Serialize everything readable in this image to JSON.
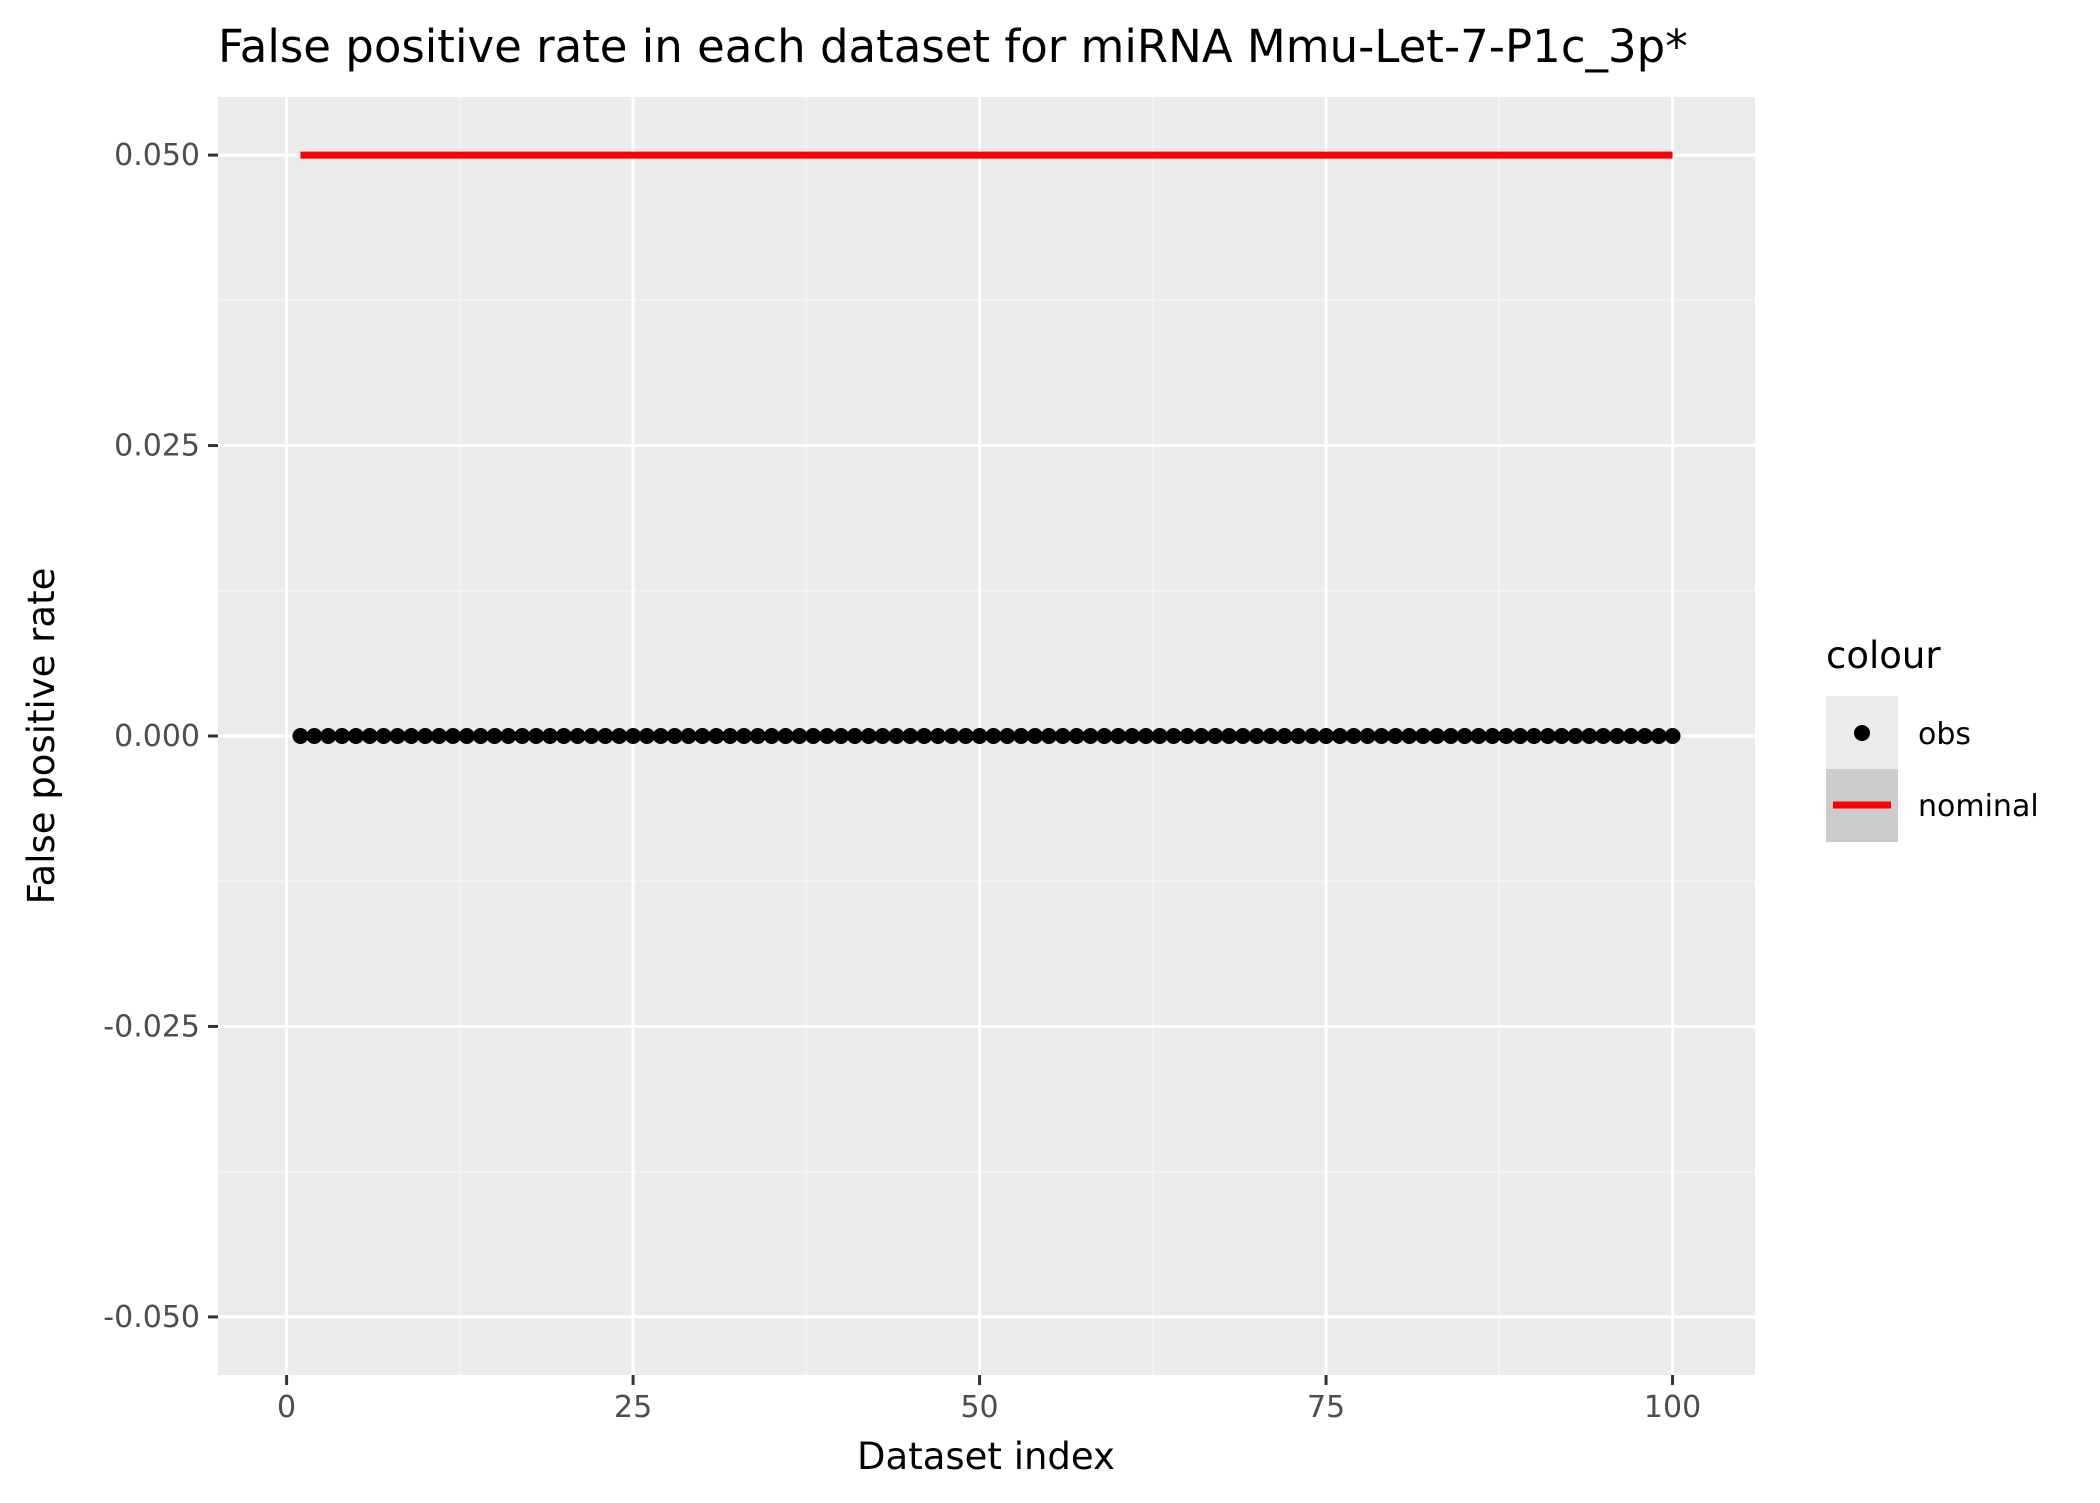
{
  "chart_data": {
    "type": "scatter",
    "title": "False positive rate in each dataset for miRNA Mmu-Let-7-P1c_3p*",
    "xlabel": "Dataset index",
    "ylabel": "False positive rate",
    "xlim": [
      -4.95,
      105.95
    ],
    "ylim": [
      -0.055,
      0.055
    ],
    "x_ticks": [
      0,
      25,
      50,
      75,
      100
    ],
    "x_tick_labels": [
      "0",
      "25",
      "50",
      "75",
      "100"
    ],
    "x_minor_ticks": [
      12.5,
      37.5,
      62.5,
      87.5
    ],
    "y_ticks": [
      -0.05,
      -0.025,
      0,
      0.025,
      0.05
    ],
    "y_tick_labels": [
      "-0.050",
      "-0.025",
      "0.000",
      "0.025",
      "0.050"
    ],
    "y_minor_ticks": [
      -0.0375,
      -0.0125,
      0.0125,
      0.0375
    ],
    "grid": true,
    "legend": {
      "title": "colour",
      "position": "right",
      "entries": [
        {
          "label": "obs",
          "symbol": "point",
          "color": "#000000"
        },
        {
          "label": "nominal",
          "symbol": "line",
          "color": "#ff0000"
        }
      ]
    },
    "series": [
      {
        "name": "obs",
        "kind": "points",
        "color": "#000000",
        "x_start": 1,
        "x_end": 100,
        "y": 0
      },
      {
        "name": "nominal",
        "kind": "line",
        "color": "#ff0000",
        "x": [
          1,
          100
        ],
        "y": [
          0.05,
          0.05
        ]
      }
    ]
  },
  "colors": {
    "panel_background": "#ebebeb",
    "grid_major": "#ffffff",
    "grid_minor": "#f5f5f5",
    "legend_key_obs_bg": "#ebebeb",
    "legend_key_nominal_bg": "#cccccc"
  }
}
